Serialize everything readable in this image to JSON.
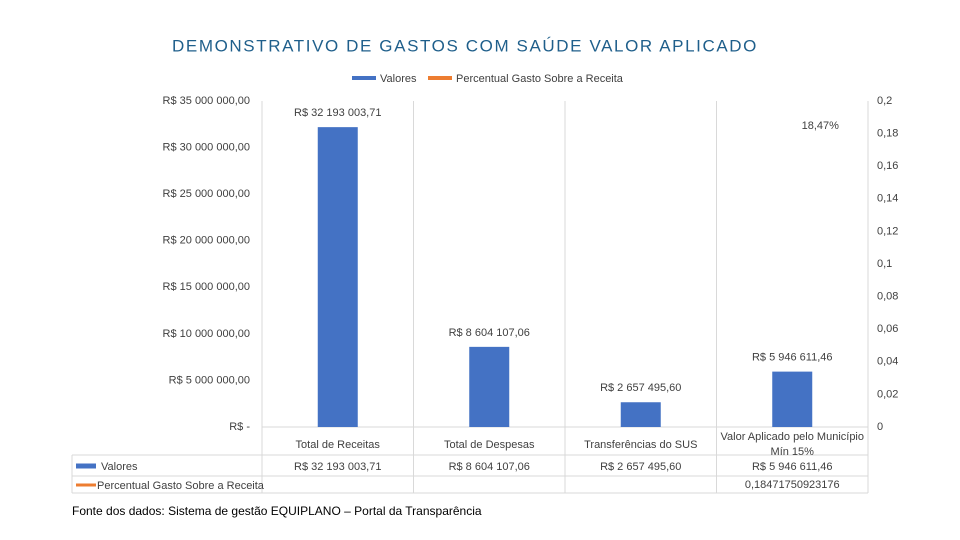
{
  "chart_data": {
    "type": "bar",
    "title": "DEMONSTRATIVO DE GASTOS COM SAÚDE VALOR APLICADO",
    "categories": [
      "Total de Receitas",
      "Total de Despesas",
      "Transferências do SUS",
      "Valor Aplicado pelo Município Mín 15%"
    ],
    "series": [
      {
        "name": "Valores",
        "color": "#4472c4",
        "type": "bar",
        "values": [
          32193003.71,
          8604107.06,
          2657495.6,
          5946611.46
        ],
        "value_labels": [
          "R$ 32 193 003,71",
          "R$ 8 604 107,06",
          "R$ 2 657 495,60",
          "R$ 5 946 611,46"
        ]
      },
      {
        "name": "Percentual Gasto Sobre a Receita",
        "color": "#ed7d31",
        "type": "line",
        "axis": "y2",
        "values": [
          null,
          null,
          null,
          0.18471750923176
        ],
        "value_labels": [
          null,
          null,
          null,
          "18,47%"
        ],
        "table_labels": [
          null,
          null,
          null,
          "0,18471750923176"
        ]
      }
    ],
    "ylim": [
      0,
      35000000
    ],
    "yticks": [
      {
        "value": 0,
        "label": "R$ -"
      },
      {
        "value": 5000000,
        "label": "R$ 5 000 000,00"
      },
      {
        "value": 10000000,
        "label": "R$ 10 000 000,00"
      },
      {
        "value": 15000000,
        "label": "R$ 15 000 000,00"
      },
      {
        "value": 20000000,
        "label": "R$ 20 000 000,00"
      },
      {
        "value": 25000000,
        "label": "R$ 25 000 000,00"
      },
      {
        "value": 30000000,
        "label": "R$ 30 000 000,00"
      },
      {
        "value": 35000000,
        "label": "R$ 35 000 000,00"
      }
    ],
    "y2lim": [
      0,
      0.2
    ],
    "y2ticks": [
      0,
      {
        "value": 0.02,
        "label": "0,02"
      },
      {
        "value": 0.04,
        "label": "0,04"
      },
      {
        "value": 0.06,
        "label": "0,06"
      },
      {
        "value": 0.08,
        "label": "0,08"
      },
      {
        "value": 0.1,
        "label": "0,1"
      },
      {
        "value": 0.12,
        "label": "0,12"
      },
      {
        "value": 0.14,
        "label": "0,14"
      },
      {
        "value": 0.16,
        "label": "0,16"
      },
      {
        "value": 0.18,
        "label": "0,18"
      },
      {
        "value": 0.2,
        "label": "0,2"
      }
    ],
    "legend": "top",
    "grid": false,
    "data_table": true,
    "source": "Fonte dos dados: Sistema de gestão EQUIPLANO – Portal da Transparência"
  }
}
